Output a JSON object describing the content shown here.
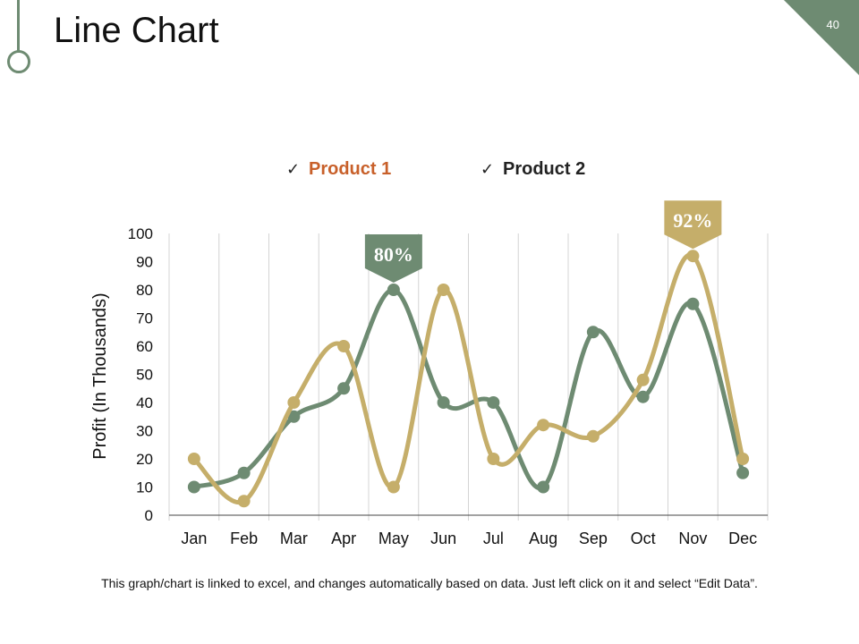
{
  "slide": {
    "title": "Line Chart",
    "page_number": "40",
    "footnote": "This graph/chart is linked to excel, and changes automatically based on data. Just left click on it and select “Edit Data”."
  },
  "colors": {
    "product1": "#c5ae6a",
    "product2": "#6e8b72",
    "product1_label": "#c8602a",
    "product2_label": "#222222",
    "grid": "#d4d4d4",
    "axis": "#444444"
  },
  "chart_data": {
    "type": "line",
    "title": "",
    "xlabel": "",
    "ylabel": "Profit (In Thousands)",
    "categories": [
      "Jan",
      "Feb",
      "Mar",
      "Apr",
      "May",
      "Jun",
      "Jul",
      "Aug",
      "Sep",
      "Oct",
      "Nov",
      "Dec"
    ],
    "ylim": [
      0,
      100
    ],
    "yticks": [
      0,
      10,
      20,
      30,
      40,
      50,
      60,
      70,
      80,
      90,
      100
    ],
    "grid": "vertical",
    "legend_position": "top",
    "series": [
      {
        "name": "Product 1",
        "color_key": "product1",
        "values": [
          20,
          5,
          40,
          60,
          10,
          80,
          20,
          32,
          28,
          48,
          92,
          20
        ]
      },
      {
        "name": "Product 2",
        "color_key": "product2",
        "values": [
          10,
          15,
          35,
          45,
          80,
          40,
          40,
          10,
          65,
          42,
          75,
          15
        ]
      }
    ],
    "annotations": [
      {
        "label": "80%",
        "series": "Product 2",
        "category": "May",
        "color_key": "product2"
      },
      {
        "label": "92%",
        "series": "Product 1",
        "category": "Nov",
        "color_key": "product1"
      }
    ]
  }
}
